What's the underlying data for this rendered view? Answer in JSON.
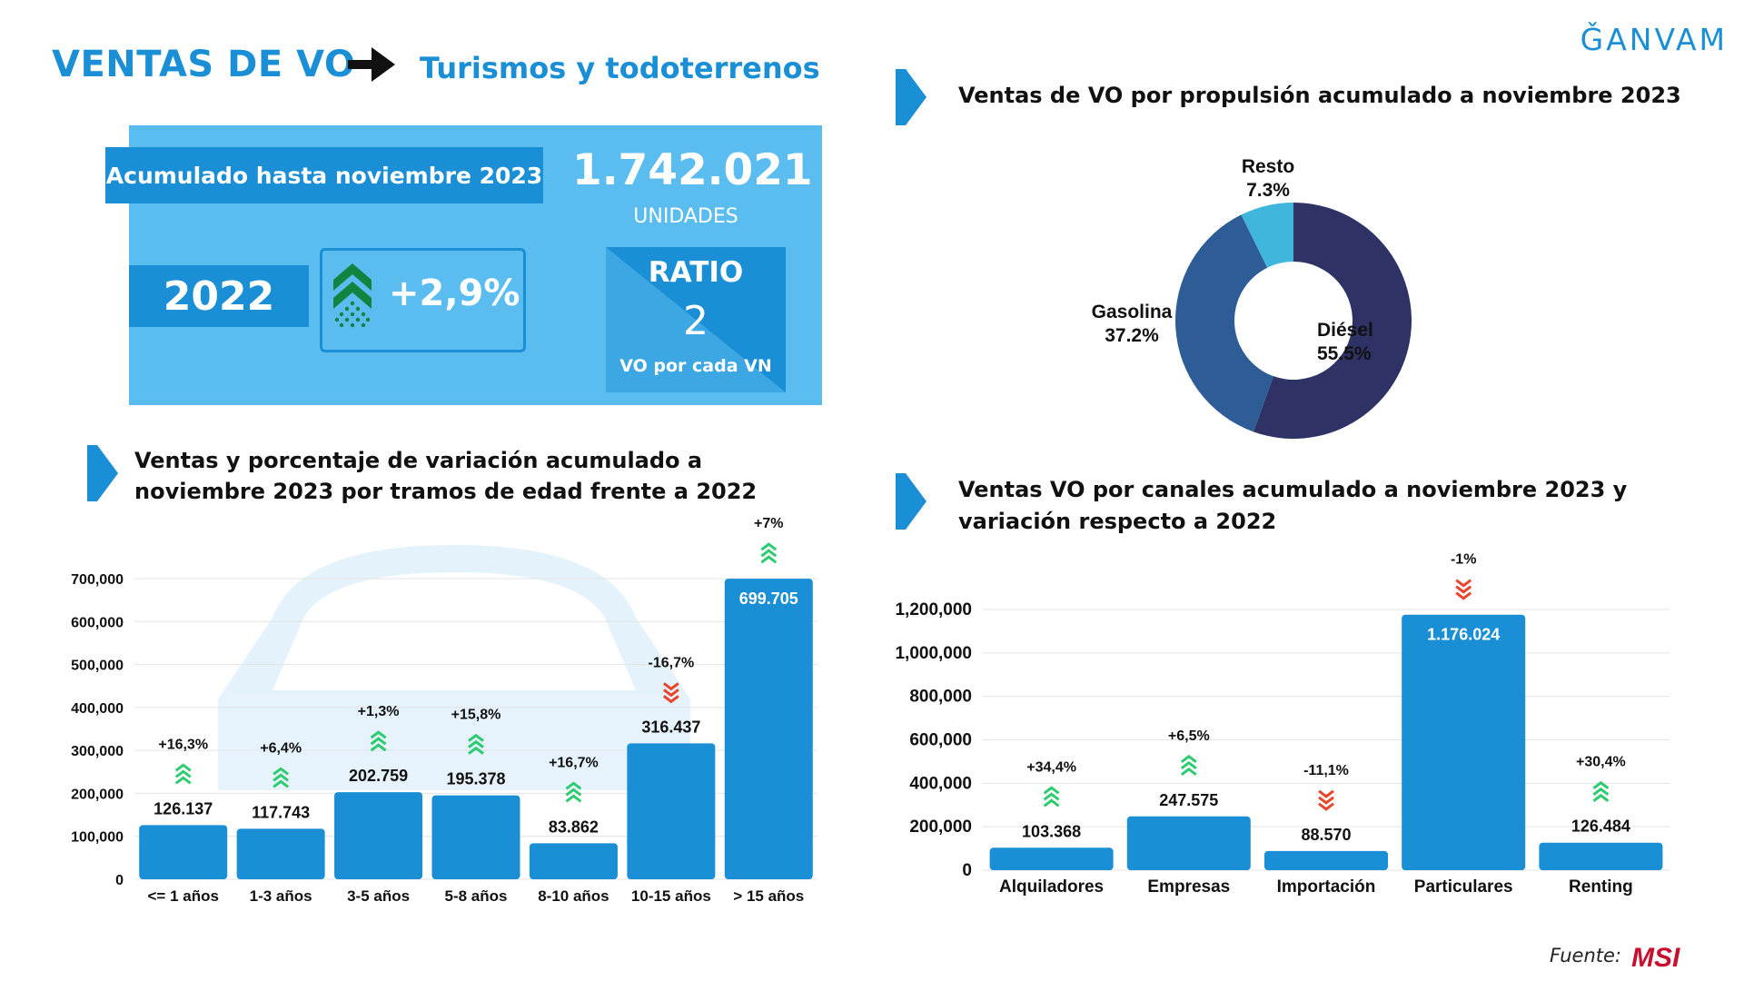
{
  "header": {
    "title": "VENTAS DE VO",
    "subtitle": "Turismos y todoterrenos",
    "logo_text": "ǦANVAM"
  },
  "kpi": {
    "accumulated_label": "Acumulado hasta noviembre 2023",
    "units_value": "1.742.021",
    "units_label": "UNIDADES",
    "compare_year": "2022",
    "variation": "+2,9%",
    "ratio_label": "RATIO",
    "ratio_value": "2",
    "ratio_desc": "VO por cada VN"
  },
  "sections": {
    "propulsion_title": "Ventas de VO por propulsión acumulado a noviembre 2023",
    "age_title_line1": "Ventas y porcentaje de variación acumulado a",
    "age_title_line2": "noviembre 2023 por tramos de edad frente a 2022",
    "channels_title_line1": "Ventas VO por canales acumulado a noviembre 2023 y",
    "channels_title_line2": "variación respecto a 2022"
  },
  "footer": {
    "source_label": "Fuente:",
    "source_logo": "MSI"
  },
  "colors": {
    "accent": "#1a8fd6",
    "light_panel": "#5bbcf0",
    "up_arrow": "#2ecc71",
    "down_arrow": "#e8452c",
    "diesel": "#2e3264",
    "gasolina": "#2e5c96",
    "resto": "#41b6dc"
  },
  "chart_data": [
    {
      "id": "propulsion",
      "type": "pie",
      "donut": true,
      "slices": [
        {
          "label": "Diésel",
          "value": 55.5,
          "display": "55.5%"
        },
        {
          "label": "Gasolina",
          "value": 37.2,
          "display": "37.2%"
        },
        {
          "label": "Resto",
          "value": 7.3,
          "display": "7.3%"
        }
      ]
    },
    {
      "id": "age",
      "type": "bar",
      "categories": [
        "<= 1 años",
        "1-3 años",
        "3-5 años",
        "5-8 años",
        "8-10 años",
        "10-15 años",
        "> 15 años"
      ],
      "values": [
        126137,
        117743,
        202759,
        195378,
        83862,
        316437,
        699705
      ],
      "value_labels": [
        "126.137",
        "117.743",
        "202.759",
        "195.378",
        "83.862",
        "316.437",
        "699.705"
      ],
      "variation_labels": [
        "+16,3%",
        "+6,4%",
        "+1,3%",
        "+15,8%",
        "+16,7%",
        "-16,7%",
        "+7%"
      ],
      "variation_dir": [
        "up",
        "up",
        "up",
        "up",
        "up",
        "down",
        "up"
      ],
      "ylim": [
        0,
        700000
      ],
      "yticks": [
        0,
        100000,
        200000,
        300000,
        400000,
        500000,
        600000,
        700000
      ],
      "ytick_labels": [
        "0",
        "100,000",
        "200,000",
        "300,000",
        "400,000",
        "500,000",
        "600,000",
        "700,000"
      ],
      "grid": true
    },
    {
      "id": "channels",
      "type": "bar",
      "categories": [
        "Alquiladores",
        "Empresas",
        "Importación",
        "Particulares",
        "Renting"
      ],
      "values": [
        103368,
        247575,
        88570,
        1176024,
        126484
      ],
      "value_labels": [
        "103.368",
        "247.575",
        "88.570",
        "1.176.024",
        "126.484"
      ],
      "variation_labels": [
        "+34,4%",
        "+6,5%",
        "-11,1%",
        "-1%",
        "+30,4%"
      ],
      "variation_dir": [
        "up",
        "up",
        "down",
        "down",
        "up"
      ],
      "ylim": [
        0,
        1200000
      ],
      "yticks": [
        0,
        200000,
        400000,
        600000,
        800000,
        1000000,
        1200000
      ],
      "ytick_labels": [
        "0",
        "200,000",
        "400,000",
        "600,000",
        "800,000",
        "1,000,000",
        "1,200,000"
      ],
      "grid": true
    }
  ]
}
